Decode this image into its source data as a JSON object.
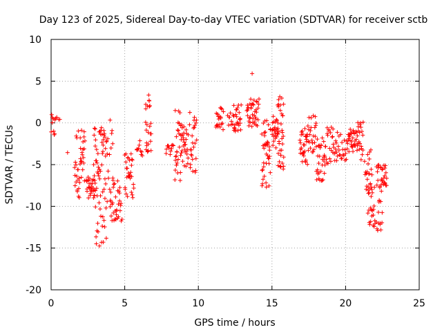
{
  "chart_data": {
    "type": "scatter",
    "title": "Day 123 of 2025, Sidereal Day-to-day VTEC variation (SDTVAR) for receiver sctb",
    "xlabel": "GPS time / hours",
    "ylabel": "SDTVAR / TECUs",
    "xlim": [
      0,
      25
    ],
    "ylim": [
      -20,
      10
    ],
    "xticks": [
      0,
      5,
      10,
      15,
      20,
      25
    ],
    "yticks": [
      -20,
      -15,
      -10,
      -5,
      0,
      5,
      10
    ],
    "grid": true,
    "marker": "+",
    "series_color": "#ff0000",
    "clusters": [
      [
        0.0,
        0.3,
        -2.0,
        1.0,
        10
      ],
      [
        0.4,
        0.6,
        -0.5,
        2.0,
        3
      ],
      [
        1.0,
        1.2,
        -4.0,
        -3.5,
        1
      ],
      [
        1.6,
        2.3,
        -9.0,
        -0.5,
        40
      ],
      [
        2.4,
        3.0,
        -9.0,
        -6.5,
        30
      ],
      [
        2.9,
        3.7,
        -9.0,
        -0.5,
        45
      ],
      [
        3.0,
        3.8,
        -15.0,
        -9.0,
        20
      ],
      [
        3.7,
        4.2,
        -8.0,
        0.5,
        15
      ],
      [
        4.0,
        4.8,
        -12.0,
        -6.5,
        35
      ],
      [
        5.0,
        5.6,
        -9.0,
        -3.5,
        30
      ],
      [
        5.8,
        6.2,
        -4.0,
        -2.0,
        10
      ],
      [
        6.4,
        6.8,
        -3.5,
        3.5,
        25
      ],
      [
        7.8,
        8.3,
        -4.0,
        -2.5,
        12
      ],
      [
        8.4,
        8.8,
        -7.0,
        1.5,
        25
      ],
      [
        8.8,
        9.3,
        -5.5,
        0.0,
        30
      ],
      [
        9.4,
        9.9,
        -6.0,
        1.5,
        25
      ],
      [
        11.2,
        11.7,
        -1.0,
        2.0,
        20
      ],
      [
        12.0,
        12.4,
        -0.5,
        1.5,
        10
      ],
      [
        12.4,
        12.9,
        -1.0,
        2.5,
        25
      ],
      [
        13.3,
        14.1,
        -0.5,
        3.0,
        40
      ],
      [
        13.6,
        13.7,
        5.0,
        6.0,
        1
      ],
      [
        14.3,
        14.9,
        -8.0,
        0.5,
        40
      ],
      [
        15.0,
        15.4,
        -3.0,
        1.0,
        25
      ],
      [
        15.4,
        15.8,
        -6.0,
        3.5,
        35
      ],
      [
        16.9,
        17.4,
        -5.0,
        -0.5,
        30
      ],
      [
        17.4,
        18.0,
        -3.5,
        1.0,
        25
      ],
      [
        18.0,
        18.6,
        -7.0,
        -1.5,
        30
      ],
      [
        18.6,
        19.4,
        -5.0,
        -0.5,
        30
      ],
      [
        19.4,
        20.2,
        -4.5,
        -1.0,
        25
      ],
      [
        20.2,
        20.8,
        -3.5,
        -0.5,
        30
      ],
      [
        20.8,
        21.2,
        -4.5,
        0.5,
        20
      ],
      [
        21.3,
        21.8,
        -8.0,
        -2.5,
        20
      ],
      [
        21.5,
        22.0,
        -12.5,
        -7.0,
        25
      ],
      [
        22.1,
        22.5,
        -13.0,
        -5.0,
        30
      ],
      [
        22.5,
        22.8,
        -7.5,
        -5.0,
        15
      ]
    ]
  }
}
